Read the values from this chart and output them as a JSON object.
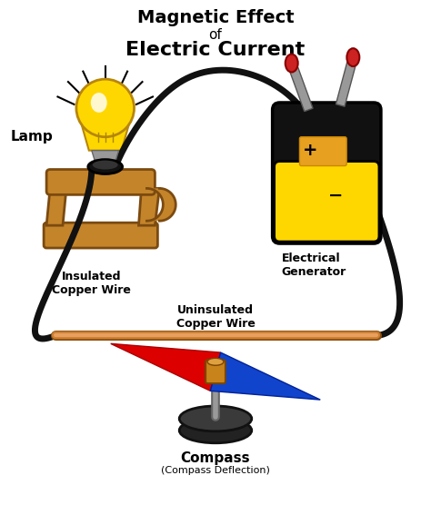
{
  "bg_color": "#ffffff",
  "title_line1": "Magnetic Effect",
  "title_line2": "of",
  "title_line3": "Electric Current",
  "label_lamp": "Lamp",
  "label_wire1": "Insulated\nCopper Wire",
  "label_wire2": "Uninsulated\nCopper Wire",
  "label_generator": "Electrical\nGenerator",
  "label_compass": "Compass",
  "label_compass_sub": "(Compass Deflection)",
  "lamp_bulb_color": "#FFD700",
  "lamp_bulb_highlight": "#FFFFF0",
  "lamp_stand_color": "#C4842A",
  "lamp_stand_edge": "#7B4A10",
  "lamp_socket_color": "#1a1a1a",
  "gen_yellow": "#FFD700",
  "gen_black": "#111111",
  "gen_clip_grey": "#888888",
  "gen_clip_red": "#CC2222",
  "wire_black": "#111111",
  "wire_copper": "#CD7F32",
  "compass_base_dark": "#333333",
  "compass_base_mid": "#555555",
  "compass_stem": "#777777",
  "needle_red": "#DD0000",
  "needle_blue": "#1144CC",
  "needle_pivot": "#C8831A"
}
